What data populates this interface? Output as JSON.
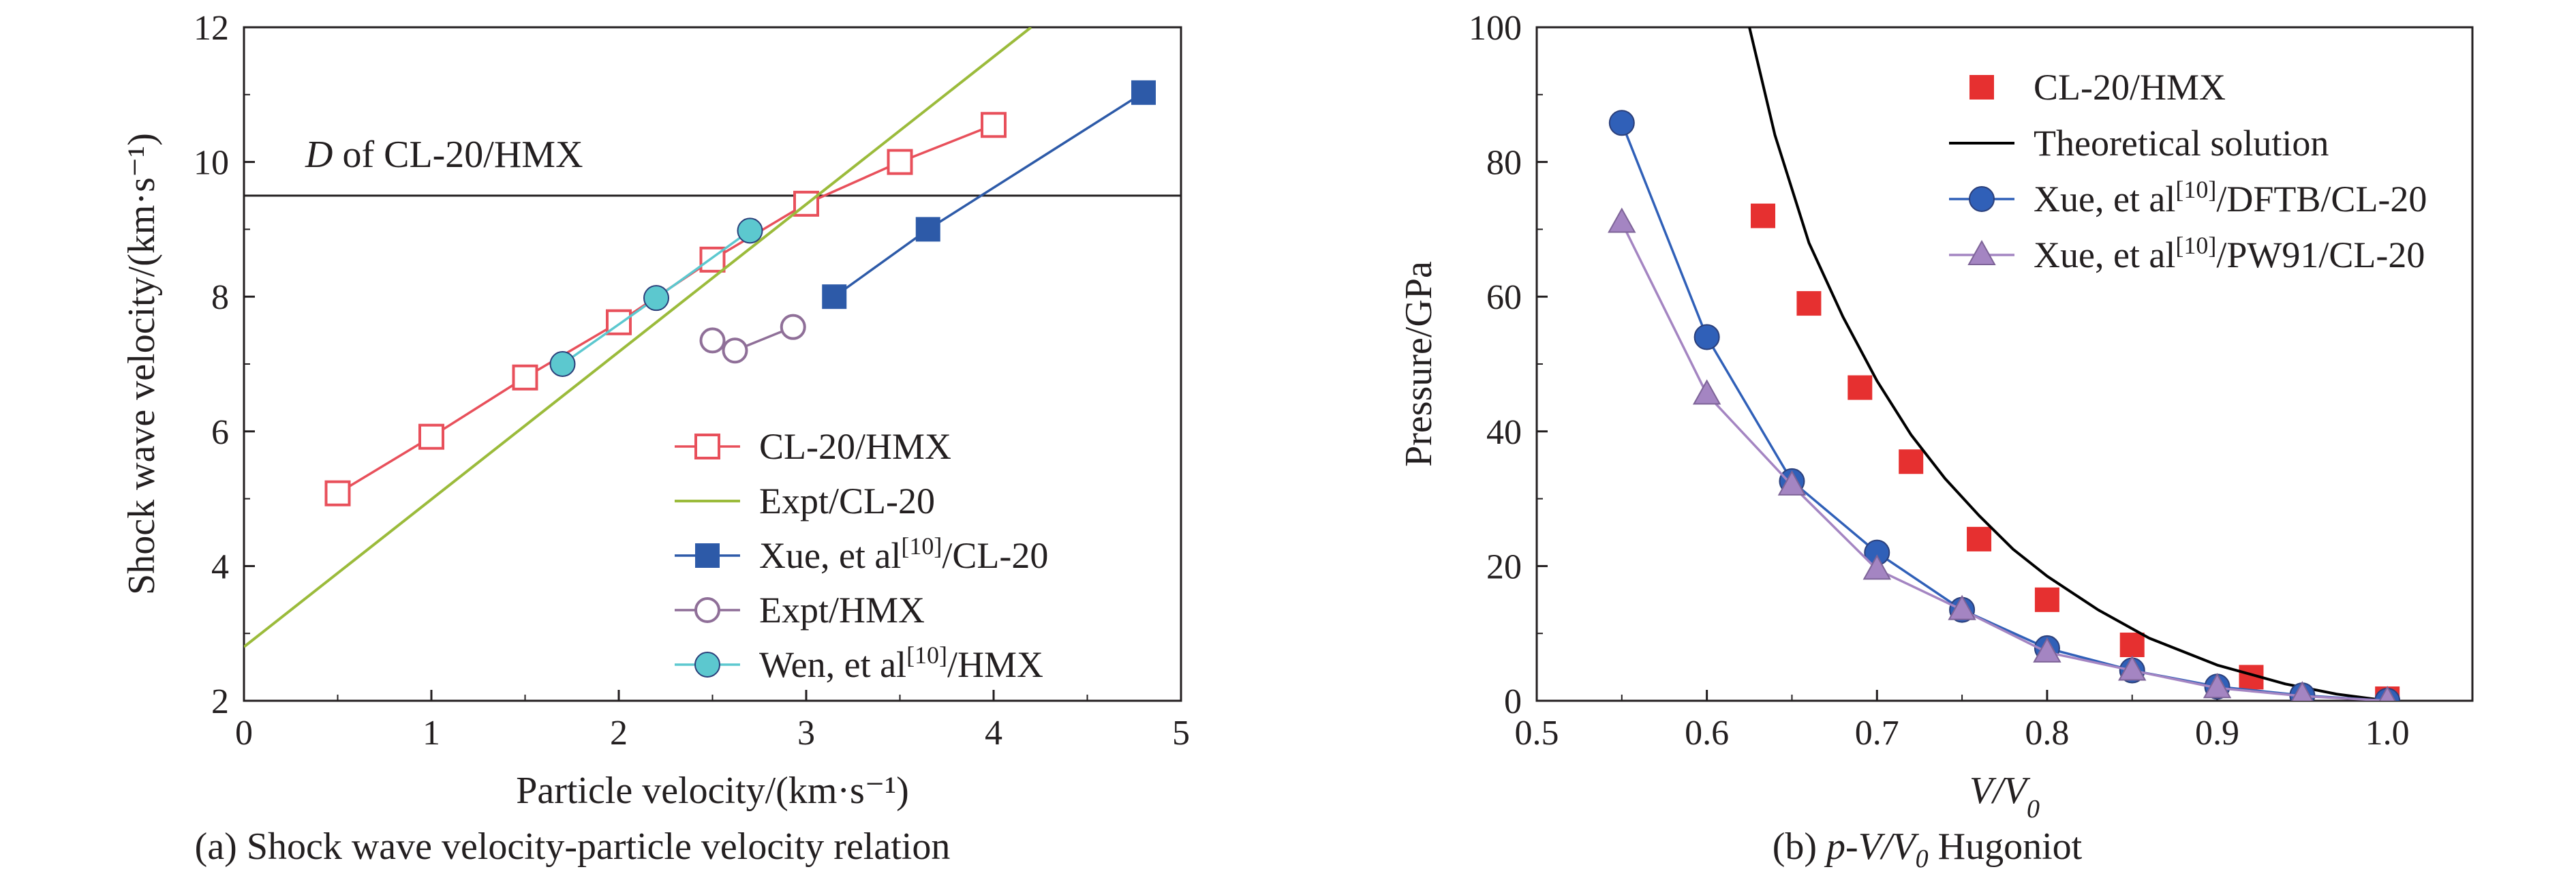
{
  "chart_data": [
    {
      "type": "line",
      "panel": "a",
      "caption": "(a) Shock wave velocity-particle velocity relation",
      "xlabel": "Particle velocity/(km·s⁻¹)",
      "ylabel": "Shock wave velocity/(km·s⁻¹)",
      "xlim": [
        0,
        5
      ],
      "ylim": [
        2,
        12
      ],
      "xticks": [
        0,
        1,
        2,
        3,
        4,
        5
      ],
      "yticks": [
        2,
        4,
        6,
        8,
        10,
        12
      ],
      "grid": false,
      "legend_position": "bottom-right",
      "reference_line": {
        "y": 9.5,
        "label": "D of CL-20/HMX",
        "color": "#231f20"
      },
      "series": [
        {
          "name": "CL-20/HMX",
          "marker": "open-square",
          "color": "#e8505b",
          "x": [
            0.5,
            1.0,
            1.5,
            2.0,
            2.5,
            3.0,
            3.5,
            4.0
          ],
          "y": [
            5.08,
            5.92,
            6.8,
            7.62,
            8.55,
            9.38,
            10.0,
            10.55
          ]
        },
        {
          "name": "Expt/CL-20",
          "marker": "none",
          "color": "#9bbb3b",
          "x": [
            0,
            4.2
          ],
          "y": [
            2.8,
            12.0
          ]
        },
        {
          "name": "Xue, et al[10]/CL-20",
          "marker": "filled-square",
          "color": "#2d5aa8",
          "x": [
            3.15,
            3.65,
            4.8
          ],
          "y": [
            8.0,
            9.0,
            11.03
          ]
        },
        {
          "name": "Expt/HMX",
          "marker": "open-circle",
          "color": "#8f6f98",
          "x": [
            2.5,
            2.62,
            2.93
          ],
          "y": [
            7.35,
            7.2,
            7.55
          ]
        },
        {
          "name": "Wen, et al[10]/HMX",
          "marker": "filled-circle",
          "color": "#5cc8cf",
          "x": [
            1.7,
            2.2,
            2.7
          ],
          "y": [
            7.0,
            7.98,
            8.98
          ]
        }
      ]
    },
    {
      "type": "scatter",
      "panel": "b",
      "caption_prefix": "(b) ",
      "caption_math": "p-V/V",
      "caption_sub": "0",
      "caption_suffix": " Hugoniot",
      "xlabel_main": "V/V",
      "xlabel_sub": "0",
      "ylabel": "Pressure/GPa",
      "xlim": [
        0.5,
        1.05
      ],
      "ylim": [
        0,
        100
      ],
      "xticks": [
        0.5,
        0.6,
        0.7,
        0.8,
        0.9,
        1.0
      ],
      "yticks": [
        0,
        20,
        40,
        60,
        80,
        100
      ],
      "grid": false,
      "legend_position": "top-right",
      "series": [
        {
          "name": "CL-20/HMX",
          "marker": "filled-square",
          "color": "#e63030",
          "x": [
            0.633,
            0.66,
            0.69,
            0.72,
            0.76,
            0.8,
            0.85,
            0.92,
            1.0
          ],
          "y": [
            72,
            59,
            46.5,
            35.5,
            24,
            15,
            8.3,
            3.5,
            0.3
          ]
        },
        {
          "name": "Theoretical solution",
          "marker": "none",
          "color": "#000000",
          "x": [
            0.625,
            0.64,
            0.66,
            0.68,
            0.7,
            0.72,
            0.74,
            0.76,
            0.78,
            0.8,
            0.83,
            0.86,
            0.9,
            0.94,
            0.97,
            1.0
          ],
          "y": [
            100,
            84,
            68,
            57,
            47.5,
            39.5,
            33,
            27.5,
            22.5,
            18.5,
            13.5,
            9.3,
            5.3,
            2.5,
            1.0,
            0
          ]
        },
        {
          "name": "Xue, et al[10]/DFTB/CL-20",
          "marker": "filled-circle",
          "color": "#3060b8",
          "x": [
            0.55,
            0.6,
            0.65,
            0.7,
            0.75,
            0.8,
            0.85,
            0.9,
            0.95,
            1.0
          ],
          "y": [
            85.8,
            54,
            32.6,
            22,
            13.5,
            7.8,
            4.5,
            2.1,
            0.8,
            0
          ]
        },
        {
          "name": "Xue, et al[10]/PW91/CL-20",
          "marker": "filled-triangle",
          "color": "#a485c2",
          "x": [
            0.55,
            0.6,
            0.65,
            0.7,
            0.75,
            0.8,
            0.85,
            0.9,
            0.95,
            1.0
          ],
          "y": [
            71,
            45.5,
            32,
            19.5,
            13.5,
            7.2,
            4.5,
            1.9,
            0.7,
            0
          ]
        }
      ]
    }
  ]
}
